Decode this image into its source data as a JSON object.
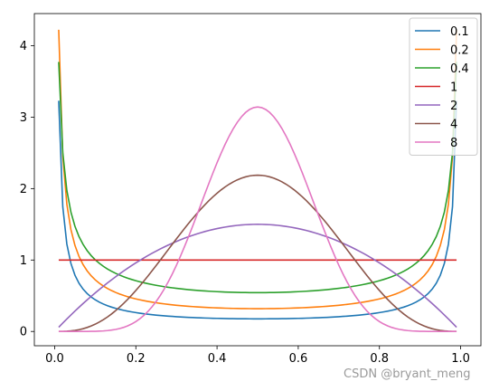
{
  "chart_data": {
    "type": "line",
    "title": "",
    "xlabel": "",
    "ylabel": "",
    "xlim": [
      -0.05,
      1.05
    ],
    "ylim": [
      -0.2,
      4.45
    ],
    "x_ticks": [
      0.0,
      0.2,
      0.4,
      0.6,
      0.8,
      1.0
    ],
    "x_tick_labels": [
      "0.0",
      "0.2",
      "0.4",
      "0.6",
      "0.8",
      "1.0"
    ],
    "y_ticks": [
      0,
      1,
      2,
      3,
      4
    ],
    "y_tick_labels": [
      "0",
      "1",
      "2",
      "3",
      "4"
    ],
    "grid": false,
    "legend_position": "top-right",
    "x_start": 0.01,
    "x_end": 0.99,
    "x_samples": 99,
    "series": [
      {
        "name": "0.1",
        "color": "#1f77b4",
        "alpha": 0.1,
        "beta": 0.1
      },
      {
        "name": "0.2",
        "color": "#ff7f0e",
        "alpha": 0.2,
        "beta": 0.2
      },
      {
        "name": "0.4",
        "color": "#2ca02c",
        "alpha": 0.4,
        "beta": 0.4
      },
      {
        "name": "1",
        "color": "#d62728",
        "alpha": 1,
        "beta": 1
      },
      {
        "name": "2",
        "color": "#9467bd",
        "alpha": 2,
        "beta": 2
      },
      {
        "name": "4",
        "color": "#8c564b",
        "alpha": 4,
        "beta": 4
      },
      {
        "name": "8",
        "color": "#e377c2",
        "alpha": 8,
        "beta": 8
      }
    ],
    "peak_values": [
      {
        "name": "0.1",
        "x0.01": 3.2,
        "x0.5": 0.18
      },
      {
        "name": "0.2",
        "x0.01": 4.2,
        "x0.5": 0.32
      },
      {
        "name": "0.4",
        "x0.01": 3.76,
        "x0.5": 0.55
      },
      {
        "name": "1",
        "x0.5": 1.0
      },
      {
        "name": "2",
        "x0.5": 1.5
      },
      {
        "name": "4",
        "x0.5": 2.19
      },
      {
        "name": "8",
        "x0.5": 3.14
      }
    ]
  },
  "watermark": "CSDN @bryant_meng"
}
